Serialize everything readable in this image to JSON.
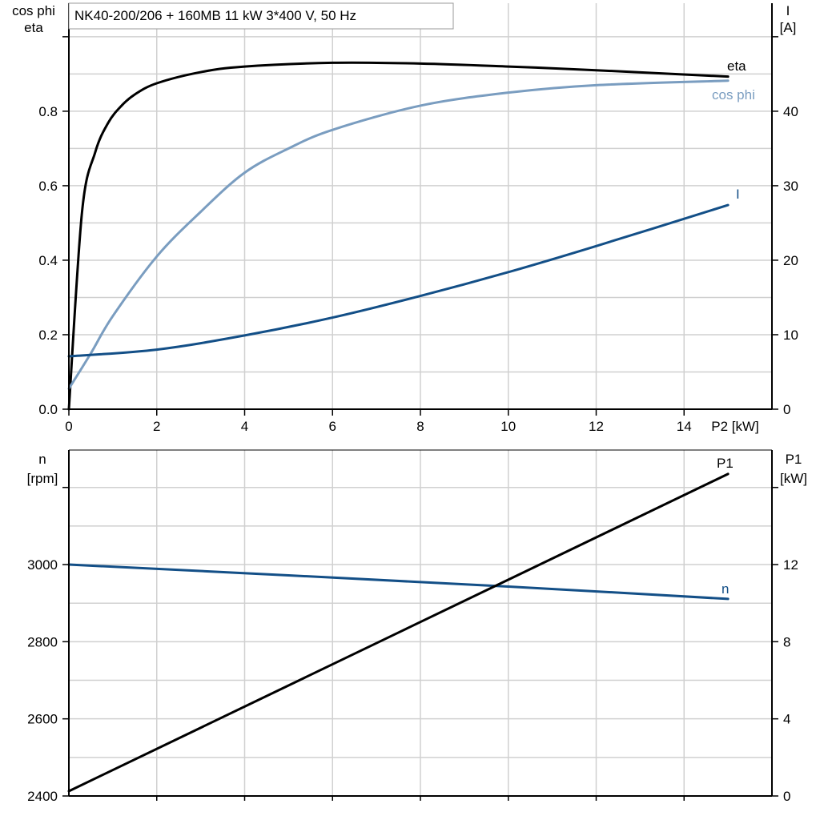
{
  "title": "NK40-200/206 + 160MB   11 kW   3*400 V, 50 Hz",
  "colors": {
    "eta": "#000000",
    "cos_phi": "#7a9dc0",
    "I": "#134f87",
    "n": "#134f87",
    "P1": "#000000",
    "grid": "#d0d0d0"
  },
  "chart_data": [
    {
      "type": "line",
      "xlabel": "P2 [kW]",
      "xlim": [
        0,
        16
      ],
      "xticks": [
        0,
        2,
        4,
        6,
        8,
        10,
        12,
        14
      ],
      "ylabel_left": [
        "cos phi",
        "eta"
      ],
      "ylim_left": [
        0,
        1.09
      ],
      "yticks_left": [
        0.0,
        0.2,
        0.4,
        0.6,
        0.8
      ],
      "yticks_left_labels": [
        "0.0",
        "0.2",
        "0.4",
        "0.6",
        "0.8"
      ],
      "ylabel_right": [
        "I",
        "[A]"
      ],
      "ylim_right": [
        0,
        54.5
      ],
      "yticks_right": [
        0,
        10,
        20,
        30,
        40
      ],
      "grid": true,
      "series": [
        {
          "name": "eta",
          "axis": "left",
          "x": [
            0,
            0.3,
            0.6,
            0.9,
            1.2,
            1.5,
            2,
            3,
            4,
            6,
            8,
            10,
            12,
            15
          ],
          "y": [
            0,
            0.53,
            0.69,
            0.77,
            0.815,
            0.845,
            0.875,
            0.905,
            0.92,
            0.93,
            0.928,
            0.92,
            0.91,
            0.893
          ]
        },
        {
          "name": "cos phi",
          "axis": "left",
          "x": [
            0,
            0.5,
            1,
            2,
            3,
            4,
            5,
            6,
            8,
            10,
            12,
            15
          ],
          "y": [
            0.055,
            0.15,
            0.25,
            0.41,
            0.53,
            0.635,
            0.7,
            0.75,
            0.815,
            0.85,
            0.87,
            0.882
          ]
        },
        {
          "name": "I",
          "axis": "right",
          "x": [
            0,
            2,
            4,
            6,
            8,
            10,
            12,
            15
          ],
          "y": [
            7.1,
            8.0,
            9.9,
            12.3,
            15.2,
            18.4,
            21.9,
            27.4
          ]
        }
      ]
    },
    {
      "type": "line",
      "xlim": [
        0,
        16
      ],
      "ylabel_left": [
        "n",
        "[rpm]"
      ],
      "ylim_left": [
        2400,
        3297
      ],
      "yticks_left": [
        2400,
        2600,
        2800,
        3000
      ],
      "ylabel_right": [
        "P1",
        "[kW]"
      ],
      "ylim_right": [
        0,
        17.94
      ],
      "yticks_right": [
        0,
        4,
        8,
        12
      ],
      "grid": true,
      "series": [
        {
          "name": "n",
          "axis": "left",
          "x": [
            0,
            5,
            10,
            15
          ],
          "y": [
            3000,
            2972,
            2943,
            2911
          ]
        },
        {
          "name": "P1",
          "axis": "right",
          "x": [
            0,
            15
          ],
          "y": [
            0.25,
            16.7
          ]
        }
      ]
    }
  ]
}
